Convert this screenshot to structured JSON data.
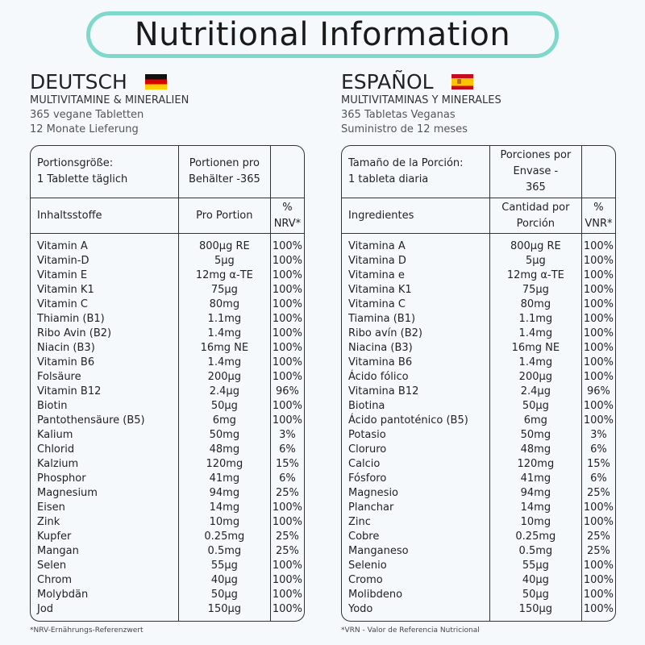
{
  "title": "Nutritional Information",
  "colors": {
    "title_border": "#7fd8cc",
    "background": "#f6f9fc"
  },
  "de": {
    "language": "DEUTSCH",
    "flag": "german-flag-icon",
    "product": "MULTIVITAMINE & MINERALIEN",
    "line1": "365 vegane Tabletten",
    "line2": "12 Monate Lieferung",
    "serving_size": "Portionsgröße:",
    "serving_size_value": "1 Tablette täglich",
    "servings_per": "Portionen pro",
    "servings_per_value": "Behälter -365",
    "h_ingredient": "Inhaltsstoffe",
    "h_amount": "Pro Portion",
    "h_pct_1": "%",
    "h_pct_2": "NRV*",
    "rows": [
      [
        "Vitamin A",
        "800µg RE",
        "100%"
      ],
      [
        "Vitamin-D",
        "5µg",
        "100%"
      ],
      [
        "Vitamin E",
        "12mg α-TE",
        "100%"
      ],
      [
        "Vitamin K1",
        "75µg",
        "100%"
      ],
      [
        "Vitamin C",
        "80mg",
        "100%"
      ],
      [
        "Thiamin (B1)",
        "1.1mg",
        "100%"
      ],
      [
        "Ribo Avin (B2)",
        "1.4mg",
        "100%"
      ],
      [
        "Niacin (B3)",
        "16mg NE",
        "100%"
      ],
      [
        "Vitamin B6",
        "1.4mg",
        "100%"
      ],
      [
        "Folsäure",
        "200µg",
        "100%"
      ],
      [
        "Vitamin B12",
        "2.4µg",
        "96%"
      ],
      [
        "Biotin",
        "50µg",
        "100%"
      ],
      [
        "Pantothensäure (B5)",
        "6mg",
        "100%"
      ],
      [
        "Kalium",
        "50mg",
        "3%"
      ],
      [
        "Chlorid",
        "48mg",
        "6%"
      ],
      [
        "Kalzium",
        "120mg",
        "15%"
      ],
      [
        "Phosphor",
        "41mg",
        "6%"
      ],
      [
        "Magnesium",
        "94mg",
        "25%"
      ],
      [
        "Eisen",
        "14mg",
        "100%"
      ],
      [
        "Zink",
        "10mg",
        "100%"
      ],
      [
        "Kupfer",
        "0.25mg",
        "25%"
      ],
      [
        "Mangan",
        "0.5mg",
        "25%"
      ],
      [
        "Selen",
        "55µg",
        "100%"
      ],
      [
        "Chrom",
        "40µg",
        "100%"
      ],
      [
        "Molybdän",
        "50µg",
        "100%"
      ],
      [
        "Jod",
        "150µg",
        "100%"
      ]
    ],
    "footnote": "*NRV-Ernährungs-Referenzwert"
  },
  "es": {
    "language": "ESPAÑOL",
    "flag": "spanish-flag-icon",
    "product": "MULTIVITAMINAS Y MINERALES",
    "line1": "365 Tabletas Veganas",
    "line2": "Suministro de 12 meses",
    "serving_size": "Tamaño de la Porción:",
    "serving_size_value": "1 tableta diaria",
    "servings_per": "Porciones por Envase -",
    "servings_per_value": "365",
    "h_ingredient": "Ingredientes",
    "h_amount": "Cantidad por Porción",
    "h_pct_1": "%",
    "h_pct_2": "VNR*",
    "rows": [
      [
        "Vitamina A",
        "800µg RE",
        "100%"
      ],
      [
        "Vitamina D",
        "5µg",
        "100%"
      ],
      [
        "Vitamina e",
        "12mg α-TE",
        "100%"
      ],
      [
        "Vitamina K1",
        "75µg",
        "100%"
      ],
      [
        "Vitamina C",
        "80mg",
        "100%"
      ],
      [
        "Tiamina (B1)",
        "1.1mg",
        "100%"
      ],
      [
        "Ribo avín (B2)",
        "1.4mg",
        "100%"
      ],
      [
        "Niacina (B3)",
        "16mg NE",
        "100%"
      ],
      [
        "Vitamina B6",
        "1.4mg",
        "100%"
      ],
      [
        "Ácido fólico",
        "200µg",
        "100%"
      ],
      [
        "Vitamina B12",
        "2.4µg",
        "96%"
      ],
      [
        "Biotina",
        "50µg",
        "100%"
      ],
      [
        "Ácido pantoténico (B5)",
        "6mg",
        "100%"
      ],
      [
        "Potasio",
        "50mg",
        "3%"
      ],
      [
        "Cloruro",
        "48mg",
        "6%"
      ],
      [
        "Calcio",
        "120mg",
        "15%"
      ],
      [
        "Fósforo",
        "41mg",
        "6%"
      ],
      [
        "Magnesio",
        "94mg",
        "25%"
      ],
      [
        "Planchar",
        "14mg",
        "100%"
      ],
      [
        "Zinc",
        "10mg",
        "100%"
      ],
      [
        "Cobre",
        "0.25mg",
        "25%"
      ],
      [
        "Manganeso",
        "0.5mg",
        "25%"
      ],
      [
        "Selenio",
        "55µg",
        "100%"
      ],
      [
        "Cromo",
        "40µg",
        "100%"
      ],
      [
        "Molibdeno",
        "50µg",
        "100%"
      ],
      [
        "Yodo",
        "150µg",
        "100%"
      ]
    ],
    "footnote": "*VRN - Valor de Referencia Nutricional"
  }
}
